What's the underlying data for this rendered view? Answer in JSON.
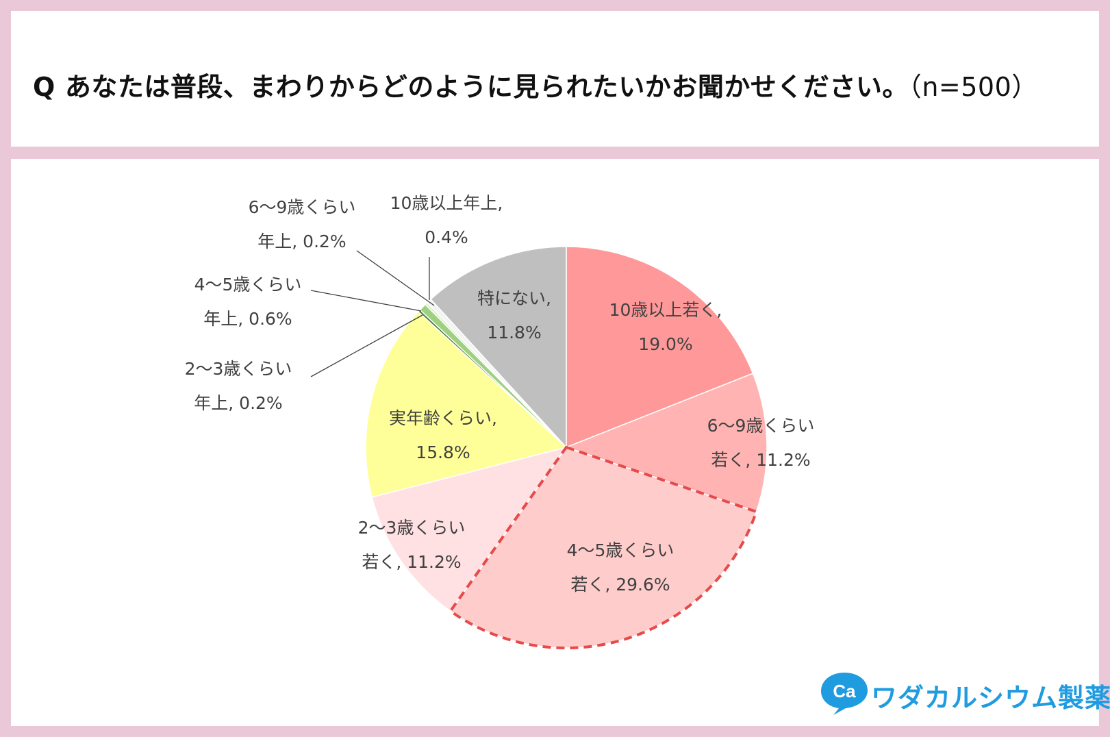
{
  "title": {
    "q_mark": "Q",
    "question": "あなたは普段、まわりからどのように見られたいかお聞かせください。",
    "sample": "（n=500）"
  },
  "chart_data": {
    "type": "pie",
    "title": "Q あなたは普段、まわりからどのように見られたいかお聞かせください。（n=500）",
    "start": "12 o'clock",
    "direction": "clockwise",
    "unit": "%",
    "highlighted": [
      "4～5歳くらい若く",
      "6～9歳くらい若く",
      "2～3歳くらい若く"
    ],
    "slices": [
      {
        "label_line1": "10歳以上若く,",
        "label_line2": "19.0%",
        "value": 19.0,
        "color": "#ff9999"
      },
      {
        "label_line1": "6～9歳くらい",
        "label_line2": "若く, 11.2%",
        "value": 11.2,
        "color": "#ffb3b3"
      },
      {
        "label_line1": "4～5歳くらい",
        "label_line2": "若く, 29.6%",
        "value": 29.6,
        "color": "#ffcccc"
      },
      {
        "label_line1": "2～3歳くらい",
        "label_line2": "若く, 11.2%",
        "value": 11.2,
        "color": "#ffe0e3"
      },
      {
        "label_line1": "実年齢くらい,",
        "label_line2": "15.8%",
        "value": 15.8,
        "color": "#ffff99"
      },
      {
        "label_line1": "2～3歳くらい",
        "label_line2": "年上, 0.2%",
        "value": 0.2,
        "color": "#4d7a3a"
      },
      {
        "label_line1": "4～5歳くらい",
        "label_line2": "年上, 0.6%",
        "value": 0.6,
        "color": "#9fd07f"
      },
      {
        "label_line1": "6～9歳くらい",
        "label_line2": "年上, 0.2%",
        "value": 0.2,
        "color": "#d9efc9"
      },
      {
        "label_line1": "10歳以上年上,",
        "label_line2": "0.4%",
        "value": 0.4,
        "color": "#f3f3f3"
      },
      {
        "label_line1": "特にない,",
        "label_line2": "11.8%",
        "value": 11.8,
        "color": "#bfbfbf"
      }
    ]
  },
  "logo": {
    "text": "ワダカルシウム製薬",
    "mark_text": "Ca",
    "color": "#1f9be0"
  }
}
